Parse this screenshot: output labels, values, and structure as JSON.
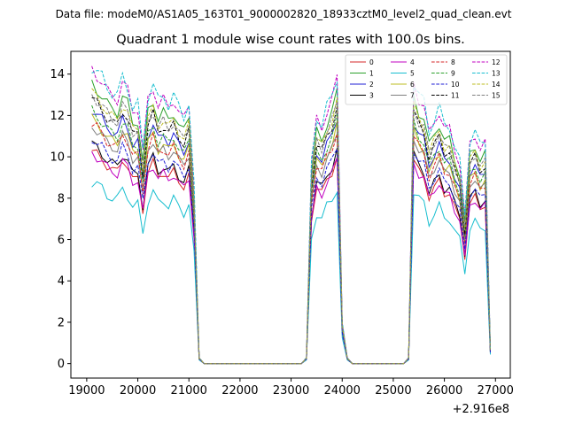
{
  "chart_data": {
    "type": "line",
    "suptitle": "Data file: modeM0/AS1A05_163T01_9000002820_18933cztM0_level2_quad_clean.evt",
    "title": "Quadrant 1 module wise count rates with 100.0s bins.",
    "xlabel": "",
    "ylabel": "",
    "x_offset_label": "+2.916e8",
    "xlim": [
      18690,
      27290
    ],
    "ylim": [
      -0.7,
      15.1
    ],
    "xticks": [
      19000,
      20000,
      21000,
      22000,
      23000,
      24000,
      25000,
      26000,
      27000
    ],
    "yticks": [
      0,
      2,
      4,
      6,
      8,
      10,
      12,
      14
    ],
    "legend_position": "upper-right",
    "legend_columns": 4,
    "x": [
      19100,
      19200,
      19300,
      19400,
      19500,
      19600,
      19700,
      19800,
      19900,
      20000,
      20100,
      20200,
      20300,
      20400,
      20500,
      20600,
      20700,
      20800,
      20900,
      21000,
      21100,
      21200,
      21300,
      21400,
      21500,
      21600,
      21700,
      21800,
      21900,
      22000,
      22100,
      22200,
      22300,
      22400,
      22500,
      22600,
      22700,
      22800,
      22900,
      23000,
      23100,
      23200,
      23300,
      23400,
      23500,
      23600,
      23700,
      23800,
      23900,
      24000,
      24100,
      24200,
      24300,
      24400,
      24500,
      24600,
      24700,
      24800,
      24900,
      25000,
      25100,
      25200,
      25300,
      25400,
      25500,
      25600,
      25700,
      25800,
      25900,
      26000,
      26100,
      26200,
      26300,
      26400,
      26500,
      26600,
      26700,
      26800,
      26900
    ],
    "base_profile": [
      1.0,
      0.98,
      0.96,
      0.93,
      0.91,
      0.9,
      0.96,
      0.93,
      0.86,
      0.87,
      0.72,
      0.9,
      0.94,
      0.88,
      0.9,
      0.87,
      0.9,
      0.86,
      0.83,
      0.88,
      0.6,
      0.02,
      0,
      0,
      0,
      0,
      0,
      0,
      0,
      0,
      0,
      0,
      0,
      0,
      0,
      0,
      0,
      0,
      0,
      0,
      0,
      0,
      0.02,
      0.68,
      0.83,
      0.8,
      0.86,
      0.9,
      0.97,
      0.14,
      0.02,
      0,
      0,
      0,
      0,
      0,
      0,
      0,
      0,
      0,
      0,
      0,
      0.02,
      0.95,
      0.9,
      0.88,
      0.78,
      0.82,
      0.86,
      0.8,
      0.8,
      0.73,
      0.68,
      0.5,
      0.75,
      0.78,
      0.73,
      0.75,
      0.05
    ],
    "series": [
      {
        "name": "0",
        "color": "#d62728",
        "dash": false,
        "level": 10.3,
        "wobble": 0.25
      },
      {
        "name": "1",
        "color": "#2ca02c",
        "dash": false,
        "level": 13.5,
        "wobble": 0.3
      },
      {
        "name": "2",
        "color": "#1f1fd6",
        "dash": false,
        "level": 12.3,
        "wobble": 0.25
      },
      {
        "name": "3",
        "color": "#000000",
        "dash": false,
        "level": 10.6,
        "wobble": 0.3
      },
      {
        "name": "4",
        "color": "#c000c0",
        "dash": false,
        "level": 10.2,
        "wobble": 0.25
      },
      {
        "name": "5",
        "color": "#17becf",
        "dash": false,
        "level": 8.8,
        "wobble": 0.3
      },
      {
        "name": "6",
        "color": "#bcbd22",
        "dash": false,
        "level": 11.8,
        "wobble": 0.3
      },
      {
        "name": "7",
        "color": "#7f7f7f",
        "dash": false,
        "level": 11.5,
        "wobble": 0.25
      },
      {
        "name": "8",
        "color": "#d62728",
        "dash": true,
        "level": 11.6,
        "wobble": 0.3
      },
      {
        "name": "9",
        "color": "#2ca02c",
        "dash": true,
        "level": 12.2,
        "wobble": 0.3
      },
      {
        "name": "10",
        "color": "#1f1fd6",
        "dash": true,
        "level": 10.9,
        "wobble": 0.25
      },
      {
        "name": "11",
        "color": "#000000",
        "dash": true,
        "level": 12.8,
        "wobble": 0.3
      },
      {
        "name": "12",
        "color": "#c000c0",
        "dash": true,
        "level": 14.2,
        "wobble": 0.3
      },
      {
        "name": "13",
        "color": "#17becf",
        "dash": true,
        "level": 14.4,
        "wobble": 0.35
      },
      {
        "name": "14",
        "color": "#bcbd22",
        "dash": true,
        "level": 13.1,
        "wobble": 0.3
      },
      {
        "name": "15",
        "color": "#7f7f7f",
        "dash": true,
        "level": 13.0,
        "wobble": 0.3
      }
    ]
  }
}
